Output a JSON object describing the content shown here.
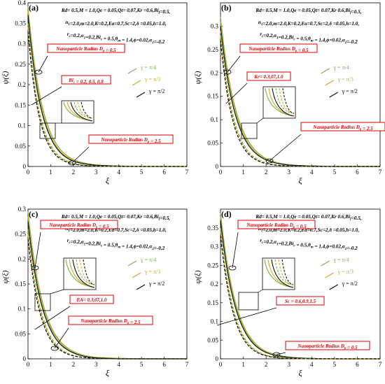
{
  "figure": {
    "panels": [
      {
        "panel_label": "(a)",
        "params": [
          "Rd= 0.5,M = 1.0,Qe = 0.05,Qt= 0.07,Kr =0.6,Bi_f=0.5,",
          "n_1=2.0,m=2.0,K=0.2,Ea=0.7,Sc=2,δ =0.05,h=1.0,",
          "r_c=0.2,α_1=0.2,Bi_c = 0.5,θ_m = 1.4,ϕ=0.02,α_2=-0.2"
        ],
        "callouts": [
          "Nanoparticle Radius D_p = 0.5",
          "Bi_c = 0.2, 0.5, 0.8",
          "Nanoparticle Radius D_p = 2.5"
        ],
        "legend": [
          "γ = π/4",
          "γ = π/3",
          "γ = π/2"
        ]
      },
      {
        "panel_label": "(b)",
        "params": [
          "Rd= 0.5,M = 1.0,Qe = 0.05,Qt= 0.07,Kr 0.6,Bi_f=0.5,",
          "n_1=2.0,m=2.0,K=0.2,Ea=0.7,Sc=2,δ =0.05,h=1.0,",
          "r_c=0.2,α_1=0.2,Bi_c = 0.5,θ_m = 1.4,ϕ=0.02,α_2=-0.2"
        ],
        "callouts": [
          "Nanoparticle Radius D_p = 0.5",
          "Kr= 0.3,07,1.0",
          "Nanoparticle Radius D_p = 2.5"
        ],
        "legend": [
          "γ = π/4",
          "γ = π/3",
          "γ = π/2"
        ]
      },
      {
        "panel_label": "(c)",
        "params": [
          "Rd= 0.5,M = 1.0,Qe = 0.05,Qt= 0.07,Kr =0.6,Bi_f=0.5,",
          "n_1=2.0,m=2.0,K=0.2,Ea=0.7,Sc=2,δ =0.05,h=1.0,",
          "r_c=0.2,α_1=0.2,Bi_c = 0.5,θ_m = 1.4,ϕ=0.02,α_2=-0.2"
        ],
        "callouts": [
          "Nanoparticle Radius D_p = 0.5",
          "EA= 0.3,07,1.0",
          "Nanoparticle Radius D_p = 2.5"
        ],
        "legend": [
          "γ = π/4",
          "γ = π/3",
          "γ = π/2"
        ]
      },
      {
        "panel_label": "(d)",
        "params": [
          "Rd= 0.5,M = 1.0,Qe = 0.05,Qt= 0.07,Kr 0.6,Bi_f=0.5,",
          "n_1=2.0,m=2.0,K=0.2,Ea=0.7,Sc=2,δ =0.05,h=1.0,",
          "r_c=0.2,α_1=0.2,Bi_c = 0.5,θ_m = 1.4,ϕ=0.02,α_2=-0.2"
        ],
        "callouts": [
          "Nanoparticle Radius D_p = 0.5",
          "Sc = 0.6,0.9,1.5",
          "Nanoparticle Radius D_p = 0.5"
        ],
        "legend": [
          "γ = π/4",
          "γ = π/3",
          "γ = π/2"
        ]
      }
    ]
  },
  "chart_data": [
    {
      "type": "line",
      "panel": "(a)",
      "xlabel": "ξ",
      "ylabel": "ψ(ξ)",
      "xlim": [
        0,
        7
      ],
      "ylim": [
        0,
        0.4
      ],
      "xticks": [
        "0",
        "1",
        "2",
        "3",
        "4",
        "5",
        "6",
        "7"
      ],
      "yticks": [
        "0",
        "0.05",
        "0.1",
        "0.15",
        "0.2",
        "0.25",
        "0.3",
        "0.35",
        "0.4"
      ],
      "series": [
        {
          "color": "#7ab648",
          "style": "solid",
          "x": [
            0,
            0.5,
            1,
            1.5,
            2,
            3,
            4,
            5,
            6,
            7
          ],
          "y": [
            0.39,
            0.18,
            0.082,
            0.037,
            0.017,
            0.004,
            0.001,
            0,
            0,
            0
          ]
        },
        {
          "color": "#d4a92a",
          "style": "solid",
          "x": [
            0,
            0.5,
            1,
            1.5,
            2,
            3,
            4,
            5,
            6,
            7
          ],
          "y": [
            0.38,
            0.17,
            0.075,
            0.033,
            0.015,
            0.003,
            0.001,
            0,
            0,
            0
          ]
        },
        {
          "color": "#111111",
          "style": "solid",
          "x": [
            0,
            0.5,
            1,
            1.5,
            2,
            3,
            4,
            5,
            6,
            7
          ],
          "y": [
            0.37,
            0.16,
            0.07,
            0.03,
            0.013,
            0.003,
            0.001,
            0,
            0,
            0
          ]
        },
        {
          "color": "#7ab648",
          "style": "dashed",
          "x": [
            0,
            0.5,
            1,
            1.5,
            2,
            3,
            4,
            5,
            6,
            7
          ],
          "y": [
            0.35,
            0.135,
            0.052,
            0.02,
            0.008,
            0.001,
            0,
            0,
            0,
            0
          ]
        },
        {
          "color": "#d4a92a",
          "style": "dashed",
          "x": [
            0,
            0.5,
            1,
            1.5,
            2,
            3,
            4,
            5,
            6,
            7
          ],
          "y": [
            0.34,
            0.128,
            0.048,
            0.018,
            0.007,
            0.001,
            0,
            0,
            0,
            0
          ]
        },
        {
          "color": "#111111",
          "style": "dashed",
          "x": [
            0,
            0.5,
            1,
            1.5,
            2,
            3,
            4,
            5,
            6,
            7
          ],
          "y": [
            0.33,
            0.12,
            0.044,
            0.016,
            0.006,
            0.001,
            0,
            0,
            0,
            0
          ]
        }
      ]
    },
    {
      "type": "line",
      "panel": "(b)",
      "xlabel": "ξ",
      "ylabel": "ψ(ξ)",
      "xlim": [
        0,
        7
      ],
      "ylim": [
        0,
        0.35
      ],
      "xticks": [
        "0",
        "1",
        "2",
        "3",
        "4",
        "5",
        "6",
        "7"
      ],
      "yticks": [
        "0",
        "0.05",
        "0.1",
        "0.15",
        "0.2",
        "0.25",
        "0.3"
      ],
      "series": [
        {
          "color": "#7ab648",
          "style": "solid",
          "x": [
            0,
            0.5,
            1,
            1.5,
            2,
            3,
            4,
            5,
            6,
            7
          ],
          "y": [
            0.32,
            0.155,
            0.075,
            0.036,
            0.017,
            0.004,
            0.001,
            0,
            0,
            0
          ]
        },
        {
          "color": "#d4a92a",
          "style": "solid",
          "x": [
            0,
            0.5,
            1,
            1.5,
            2,
            3,
            4,
            5,
            6,
            7
          ],
          "y": [
            0.31,
            0.148,
            0.07,
            0.033,
            0.015,
            0.003,
            0.001,
            0,
            0,
            0
          ]
        },
        {
          "color": "#111111",
          "style": "solid",
          "x": [
            0,
            0.5,
            1,
            1.5,
            2,
            3,
            4,
            5,
            6,
            7
          ],
          "y": [
            0.3,
            0.14,
            0.065,
            0.03,
            0.014,
            0.003,
            0.001,
            0,
            0,
            0
          ]
        },
        {
          "color": "#7ab648",
          "style": "dashed",
          "x": [
            0,
            0.5,
            1,
            1.5,
            2,
            3,
            4,
            5,
            6,
            7
          ],
          "y": [
            0.29,
            0.12,
            0.048,
            0.019,
            0.008,
            0.001,
            0,
            0,
            0,
            0
          ]
        },
        {
          "color": "#d4a92a",
          "style": "dashed",
          "x": [
            0,
            0.5,
            1,
            1.5,
            2,
            3,
            4,
            5,
            6,
            7
          ],
          "y": [
            0.28,
            0.113,
            0.045,
            0.018,
            0.007,
            0.001,
            0,
            0,
            0,
            0
          ]
        },
        {
          "color": "#111111",
          "style": "dashed",
          "x": [
            0,
            0.5,
            1,
            1.5,
            2,
            3,
            4,
            5,
            6,
            7
          ],
          "y": [
            0.27,
            0.106,
            0.041,
            0.016,
            0.006,
            0.001,
            0,
            0,
            0,
            0
          ]
        }
      ]
    },
    {
      "type": "line",
      "panel": "(c)",
      "xlabel": "ξ",
      "ylabel": "ψ(ξ)",
      "xlim": [
        0,
        7
      ],
      "ylim": [
        0,
        0.3
      ],
      "xticks": [
        "0",
        "1",
        "2",
        "3",
        "4",
        "5",
        "6",
        "7"
      ],
      "yticks": [
        "0",
        "0.05",
        "0.1",
        "0.15",
        "0.2",
        "0.25",
        "0.3"
      ],
      "series": [
        {
          "color": "#7ab648",
          "style": "solid",
          "x": [
            0,
            0.5,
            1,
            1.5,
            2,
            3,
            4,
            5,
            6,
            7
          ],
          "y": [
            0.295,
            0.14,
            0.066,
            0.031,
            0.015,
            0.003,
            0.001,
            0,
            0,
            0
          ]
        },
        {
          "color": "#d4a92a",
          "style": "solid",
          "x": [
            0,
            0.5,
            1,
            1.5,
            2,
            3,
            4,
            5,
            6,
            7
          ],
          "y": [
            0.285,
            0.133,
            0.062,
            0.029,
            0.013,
            0.003,
            0.001,
            0,
            0,
            0
          ]
        },
        {
          "color": "#111111",
          "style": "solid",
          "x": [
            0,
            0.5,
            1,
            1.5,
            2,
            3,
            4,
            5,
            6,
            7
          ],
          "y": [
            0.275,
            0.126,
            0.058,
            0.026,
            0.012,
            0.002,
            0,
            0,
            0,
            0
          ]
        },
        {
          "color": "#7ab648",
          "style": "dashed",
          "x": [
            0,
            0.5,
            1,
            1.5,
            2,
            3,
            4,
            5,
            6,
            7
          ],
          "y": [
            0.26,
            0.11,
            0.044,
            0.018,
            0.007,
            0.001,
            0,
            0,
            0,
            0
          ]
        },
        {
          "color": "#d4a92a",
          "style": "dashed",
          "x": [
            0,
            0.5,
            1,
            1.5,
            2,
            3,
            4,
            5,
            6,
            7
          ],
          "y": [
            0.25,
            0.104,
            0.041,
            0.016,
            0.006,
            0.001,
            0,
            0,
            0,
            0
          ]
        },
        {
          "color": "#111111",
          "style": "dashed",
          "x": [
            0,
            0.5,
            1,
            1.5,
            2,
            3,
            4,
            5,
            6,
            7
          ],
          "y": [
            0.24,
            0.098,
            0.038,
            0.015,
            0.006,
            0.001,
            0,
            0,
            0,
            0
          ]
        }
      ]
    },
    {
      "type": "line",
      "panel": "(d)",
      "xlabel": "ξ",
      "ylabel": "ψ(ξ)",
      "xlim": [
        0,
        7
      ],
      "ylim": [
        0,
        0.4
      ],
      "xticks": [
        "0",
        "1",
        "2",
        "3",
        "4",
        "5",
        "6",
        "7"
      ],
      "yticks": [
        "0",
        "0.05",
        "0.1",
        "0.15",
        "0.2",
        "0.25",
        "0.3",
        "0.35"
      ],
      "series": [
        {
          "color": "#7ab648",
          "style": "solid",
          "x": [
            0,
            0.5,
            1,
            1.5,
            2,
            3,
            4,
            5,
            6,
            7
          ],
          "y": [
            0.39,
            0.19,
            0.09,
            0.043,
            0.02,
            0.005,
            0.001,
            0,
            0,
            0
          ]
        },
        {
          "color": "#d4a92a",
          "style": "solid",
          "x": [
            0,
            0.5,
            1,
            1.5,
            2,
            3,
            4,
            5,
            6,
            7
          ],
          "y": [
            0.38,
            0.182,
            0.085,
            0.04,
            0.019,
            0.004,
            0.001,
            0,
            0,
            0
          ]
        },
        {
          "color": "#111111",
          "style": "solid",
          "x": [
            0,
            0.5,
            1,
            1.5,
            2,
            3,
            4,
            5,
            6,
            7
          ],
          "y": [
            0.37,
            0.174,
            0.081,
            0.037,
            0.017,
            0.004,
            0.001,
            0,
            0,
            0
          ]
        },
        {
          "color": "#7ab648",
          "style": "dashed",
          "x": [
            0,
            0.5,
            1,
            1.5,
            2,
            3,
            4,
            5,
            6,
            7
          ],
          "y": [
            0.35,
            0.15,
            0.062,
            0.025,
            0.01,
            0.002,
            0,
            0,
            0,
            0
          ]
        },
        {
          "color": "#d4a92a",
          "style": "dashed",
          "x": [
            0,
            0.5,
            1,
            1.5,
            2,
            3,
            4,
            5,
            6,
            7
          ],
          "y": [
            0.34,
            0.143,
            0.058,
            0.023,
            0.009,
            0.001,
            0,
            0,
            0,
            0
          ]
        },
        {
          "color": "#111111",
          "style": "dashed",
          "x": [
            0,
            0.5,
            1,
            1.5,
            2,
            3,
            4,
            5,
            6,
            7
          ],
          "y": [
            0.33,
            0.136,
            0.054,
            0.021,
            0.008,
            0.001,
            0,
            0,
            0,
            0
          ]
        }
      ]
    }
  ]
}
